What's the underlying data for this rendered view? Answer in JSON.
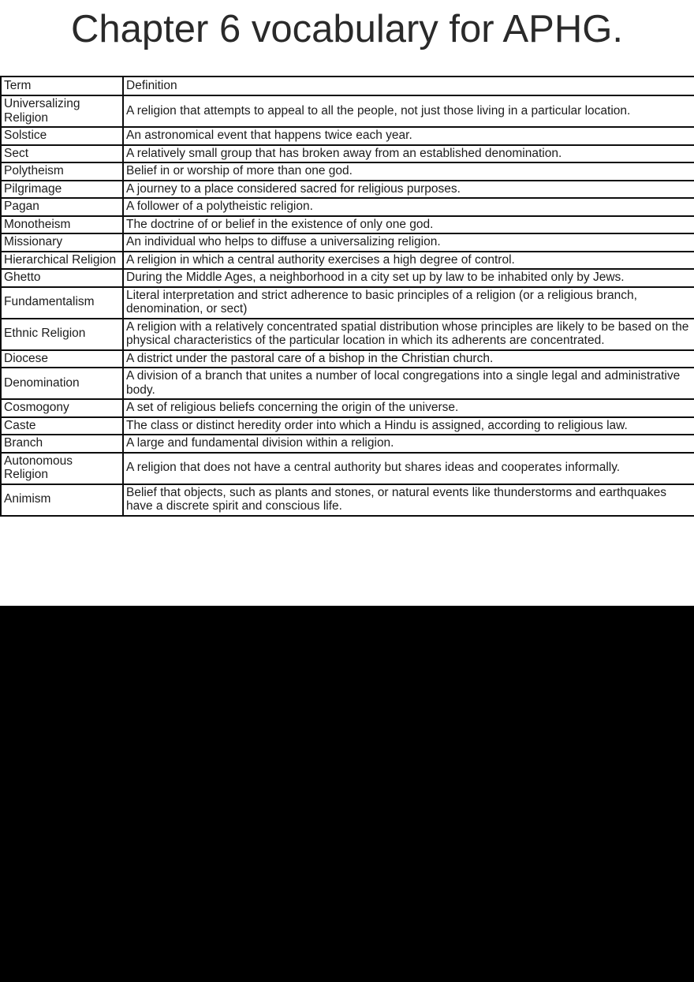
{
  "page": {
    "title": "Chapter 6 vocabulary for APHG."
  },
  "table": {
    "headers": [
      "Term",
      "Definition"
    ],
    "rows": [
      {
        "term": "Universalizing Religion",
        "definition": "A religion that attempts to appeal to all the people, not just those living in a particular location."
      },
      {
        "term": "Solstice",
        "definition": "An astronomical event that happens twice each year."
      },
      {
        "term": "Sect",
        "definition": "A relatively small group that has broken away from an established denomination."
      },
      {
        "term": "Polytheism",
        "definition": "Belief in or worship of more than one god."
      },
      {
        "term": "Pilgrimage",
        "definition": "A journey to a place considered sacred for religious purposes."
      },
      {
        "term": "Pagan",
        "definition": "A follower of a polytheistic religion."
      },
      {
        "term": "Monotheism",
        "definition": "The doctrine of or belief in the existence of only one god."
      },
      {
        "term": "Missionary",
        "definition": "An individual who helps to diffuse a universalizing religion."
      },
      {
        "term": "Hierarchical Religion",
        "definition": "A religion in which a central authority exercises a high degree of control."
      },
      {
        "term": "Ghetto",
        "definition": "During the Middle Ages, a neighborhood in a city set up by law to be inhabited only by Jews."
      },
      {
        "term": "Fundamentalism",
        "definition": "Literal interpretation and strict adherence to basic principles of a religion (or a religious branch, denomination, or sect)"
      },
      {
        "term": "Ethnic Religion",
        "definition": "A religion with a relatively concentrated spatial distribution whose principles are likely to be based on the physical characteristics of the particular location in which its adherents are concentrated."
      },
      {
        "term": "Diocese",
        "definition": "A district under the pastoral care of a bishop in the Christian church."
      },
      {
        "term": "Denomination",
        "definition": "A division of a branch that unites a number of local congregations into a single legal and administrative body."
      },
      {
        "term": "Cosmogony",
        "definition": "A set of religious beliefs concerning the origin of the universe."
      },
      {
        "term": "Caste",
        "definition": "The class or distinct heredity order into which a Hindu is assigned, according to religious law."
      },
      {
        "term": "Branch",
        "definition": "A large and fundamental division within a religion."
      },
      {
        "term": "Autonomous Religion",
        "definition": "A religion that does not have a central authority but shares ideas and cooperates informally."
      },
      {
        "term": "Animism",
        "definition": "Belief that objects, such as plants and stones, or natural events like thunderstorms and earthquakes have a discrete spirit and conscious life."
      }
    ]
  },
  "colors": {
    "page_background": "#ffffff",
    "table_border": "#0d0d0d",
    "text": "#1c1c1c",
    "letterbox": "#000000"
  }
}
